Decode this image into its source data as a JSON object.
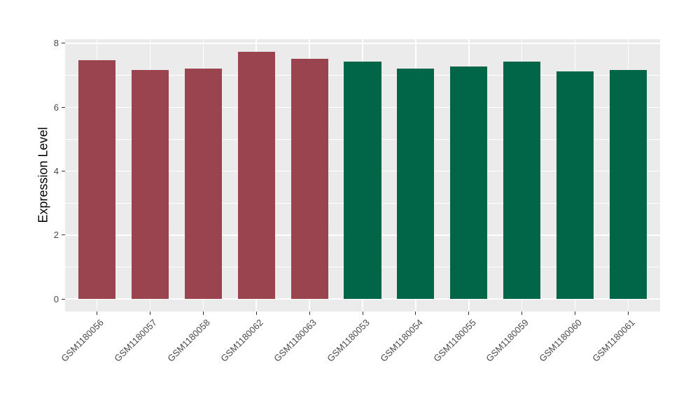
{
  "chart_data": {
    "type": "bar",
    "title": "",
    "ylabel": "Expression Level",
    "xlabel": "",
    "categories": [
      "GSM1180056",
      "GSM1180057",
      "GSM1180058",
      "GSM1180062",
      "GSM1180063",
      "GSM1180053",
      "GSM1180054",
      "GSM1180055",
      "GSM1180059",
      "GSM1180060",
      "GSM1180061"
    ],
    "values": [
      7.48,
      7.16,
      7.21,
      7.74,
      7.52,
      7.42,
      7.21,
      7.28,
      7.42,
      7.12,
      7.17
    ],
    "bar_groups": [
      "group1",
      "group1",
      "group1",
      "group1",
      "group1",
      "group2",
      "group2",
      "group2",
      "group2",
      "group2",
      "group2"
    ],
    "group_colors": {
      "group1": "#9A4450",
      "group2": "#006647"
    },
    "yticks": [
      0,
      2,
      4,
      6,
      8
    ],
    "ytick_labels": [
      "0",
      "2",
      "4",
      "6",
      "8"
    ],
    "yminorticks": [
      1,
      3,
      5,
      7
    ],
    "ylim": [
      -0.39,
      8.13
    ],
    "bar_width_fraction": 0.7,
    "axis_expansion": 0.6,
    "panel_background": "#EBEBEB",
    "grid_color": "#FFFFFF",
    "tick_mark_color": "#333333",
    "tick_label_color": "#4a4a4a",
    "legend": "none",
    "grid": "on"
  }
}
